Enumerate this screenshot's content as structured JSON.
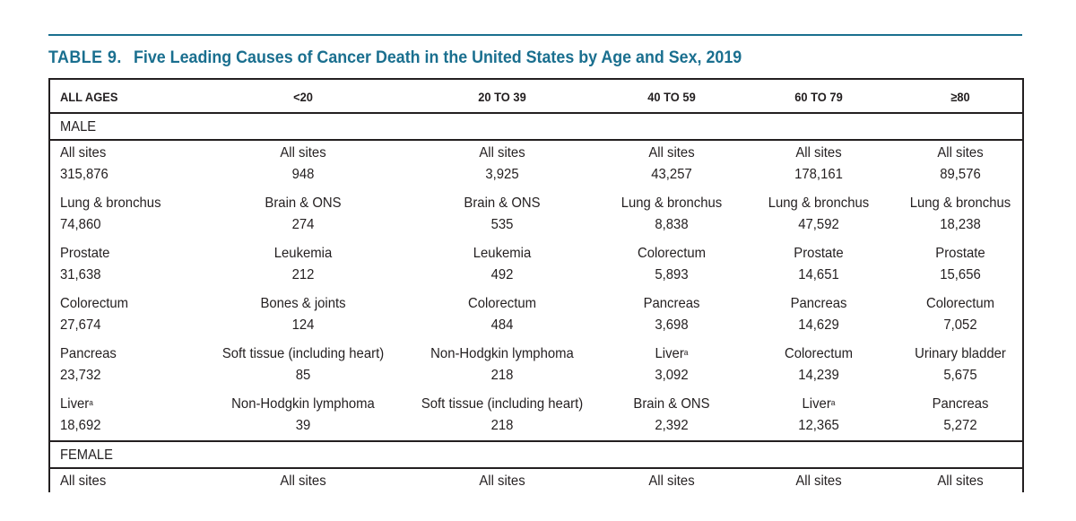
{
  "title": {
    "number": "TABLE 9.",
    "text": "Five Leading Causes of Cancer Death in the United States by Age and Sex, 2019"
  },
  "columns": [
    "ALL AGES",
    "<20",
    "20 TO 39",
    "40 TO 59",
    "60 TO 79",
    "≥80"
  ],
  "sections": [
    {
      "label": "MALE",
      "rows": [
        [
          {
            "site": "All sites",
            "sup": "",
            "count": "315,876"
          },
          {
            "site": "All sites",
            "sup": "",
            "count": "948"
          },
          {
            "site": "All sites",
            "sup": "",
            "count": "3,925"
          },
          {
            "site": "All sites",
            "sup": "",
            "count": "43,257"
          },
          {
            "site": "All sites",
            "sup": "",
            "count": "178,161"
          },
          {
            "site": "All sites",
            "sup": "",
            "count": "89,576"
          }
        ],
        [
          {
            "site": "Lung & bronchus",
            "sup": "",
            "count": "74,860"
          },
          {
            "site": "Brain & ONS",
            "sup": "",
            "count": "274"
          },
          {
            "site": "Brain & ONS",
            "sup": "",
            "count": "535"
          },
          {
            "site": "Lung & bronchus",
            "sup": "",
            "count": "8,838"
          },
          {
            "site": "Lung & bronchus",
            "sup": "",
            "count": "47,592"
          },
          {
            "site": "Lung & bronchus",
            "sup": "",
            "count": "18,238"
          }
        ],
        [
          {
            "site": "Prostate",
            "sup": "",
            "count": "31,638"
          },
          {
            "site": "Leukemia",
            "sup": "",
            "count": "212"
          },
          {
            "site": "Leukemia",
            "sup": "",
            "count": "492"
          },
          {
            "site": "Colorectum",
            "sup": "",
            "count": "5,893"
          },
          {
            "site": "Prostate",
            "sup": "",
            "count": "14,651"
          },
          {
            "site": "Prostate",
            "sup": "",
            "count": "15,656"
          }
        ],
        [
          {
            "site": "Colorectum",
            "sup": "",
            "count": "27,674"
          },
          {
            "site": "Bones & joints",
            "sup": "",
            "count": "124"
          },
          {
            "site": "Colorectum",
            "sup": "",
            "count": "484"
          },
          {
            "site": "Pancreas",
            "sup": "",
            "count": "3,698"
          },
          {
            "site": "Pancreas",
            "sup": "",
            "count": "14,629"
          },
          {
            "site": "Colorectum",
            "sup": "",
            "count": "7,052"
          }
        ],
        [
          {
            "site": "Pancreas",
            "sup": "",
            "count": "23,732"
          },
          {
            "site": "Soft tissue (including heart)",
            "sup": "",
            "count": "85"
          },
          {
            "site": "Non-Hodgkin lymphoma",
            "sup": "",
            "count": "218"
          },
          {
            "site": "Liver",
            "sup": "a",
            "count": "3,092"
          },
          {
            "site": "Colorectum",
            "sup": "",
            "count": "14,239"
          },
          {
            "site": "Urinary bladder",
            "sup": "",
            "count": "5,675"
          }
        ],
        [
          {
            "site": "Liver",
            "sup": "a",
            "count": "18,692"
          },
          {
            "site": "Non-Hodgkin lymphoma",
            "sup": "",
            "count": "39"
          },
          {
            "site": "Soft tissue (including heart)",
            "sup": "",
            "count": "218"
          },
          {
            "site": "Brain & ONS",
            "sup": "",
            "count": "2,392"
          },
          {
            "site": "Liver",
            "sup": "a",
            "count": "12,365"
          },
          {
            "site": "Pancreas",
            "sup": "",
            "count": "5,272"
          }
        ]
      ]
    },
    {
      "label": "FEMALE",
      "rows": [
        [
          {
            "site": "All sites",
            "sup": "",
            "count": ""
          },
          {
            "site": "All sites",
            "sup": "",
            "count": ""
          },
          {
            "site": "All sites",
            "sup": "",
            "count": ""
          },
          {
            "site": "All sites",
            "sup": "",
            "count": ""
          },
          {
            "site": "All sites",
            "sup": "",
            "count": ""
          },
          {
            "site": "All sites",
            "sup": "",
            "count": ""
          }
        ]
      ]
    }
  ],
  "colors": {
    "accent": "#1a6f8f",
    "text": "#231f20",
    "rule": "#231f20"
  }
}
